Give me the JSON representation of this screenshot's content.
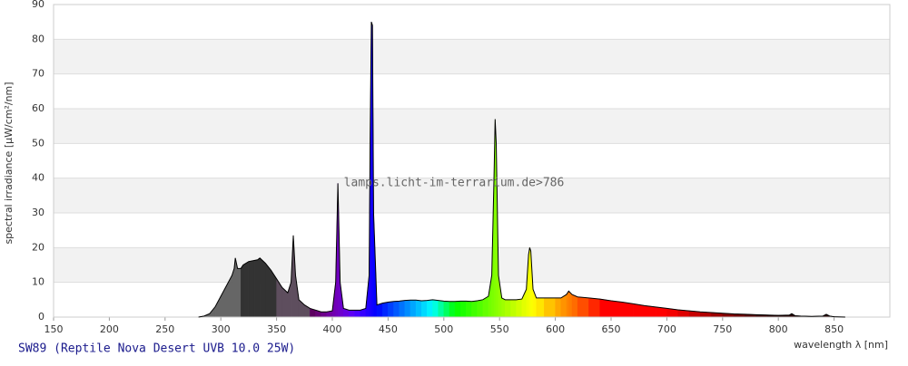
{
  "chart_data": {
    "type": "spectrum",
    "title": "SW89 (Reptile Nova Desert UVB 10.0 25W)",
    "watermark": "lamps.licht-im-terrarium.de>786",
    "x_label": "wavelength λ [nm]",
    "y_label": "spectral irradiance [µW/cm²/nm]",
    "xlim": [
      150,
      900
    ],
    "ylim": [
      0,
      90
    ],
    "xticks": [
      150,
      200,
      250,
      300,
      350,
      400,
      450,
      500,
      550,
      600,
      650,
      700,
      750,
      800,
      850
    ],
    "yticks": [
      0,
      10,
      20,
      30,
      40,
      50,
      60,
      70,
      80,
      90
    ],
    "grid": true,
    "line_color": "#000000",
    "x": [
      280,
      285,
      290,
      295,
      300,
      305,
      310,
      312,
      313,
      315,
      318,
      320,
      325,
      330,
      333,
      335,
      340,
      345,
      350,
      355,
      360,
      363,
      365,
      367,
      370,
      375,
      380,
      385,
      390,
      395,
      400,
      403,
      405,
      407,
      410,
      415,
      420,
      425,
      430,
      433,
      434,
      435,
      436,
      437,
      440,
      445,
      450,
      455,
      460,
      465,
      470,
      475,
      480,
      485,
      490,
      495,
      500,
      505,
      510,
      515,
      520,
      525,
      530,
      535,
      540,
      543,
      545,
      546,
      547,
      549,
      552,
      555,
      560,
      565,
      570,
      574,
      576,
      577,
      578,
      580,
      583,
      590,
      600,
      605,
      610,
      612,
      615,
      620,
      630,
      640,
      650,
      660,
      670,
      680,
      690,
      700,
      710,
      720,
      730,
      740,
      750,
      760,
      770,
      780,
      790,
      800,
      810,
      812,
      815,
      820,
      830,
      840,
      843,
      846,
      850,
      860
    ],
    "values": [
      0,
      0.3,
      1,
      3,
      6,
      9,
      12,
      14,
      17,
      14,
      14,
      15,
      16,
      16.3,
      16.5,
      17,
      15.5,
      13.5,
      11,
      8.5,
      7,
      10,
      23.5,
      12,
      5,
      3.5,
      2.5,
      2,
      1.5,
      1.5,
      1.8,
      10,
      38.5,
      10,
      2.5,
      2,
      2,
      2,
      2.5,
      12,
      54,
      85,
      84,
      30,
      3.5,
      4,
      4.3,
      4.5,
      4.6,
      4.8,
      4.9,
      4.9,
      4.7,
      4.8,
      5,
      4.8,
      4.6,
      4.5,
      4.5,
      4.6,
      4.6,
      4.5,
      4.7,
      5,
      6,
      12,
      40,
      57,
      50,
      12,
      5.5,
      5,
      5,
      5,
      5.2,
      8,
      18,
      20,
      19,
      8,
      5.5,
      5.5,
      5.5,
      5.5,
      6.5,
      7.5,
      6.5,
      5.8,
      5.5,
      5.2,
      4.7,
      4.3,
      3.8,
      3.3,
      2.9,
      2.5,
      2.1,
      1.8,
      1.5,
      1.3,
      1.1,
      0.9,
      0.8,
      0.7,
      0.6,
      0.5,
      0.6,
      1,
      0.4,
      0.3,
      0.2,
      0.3,
      0.8,
      0.3,
      0.1,
      0
    ]
  }
}
